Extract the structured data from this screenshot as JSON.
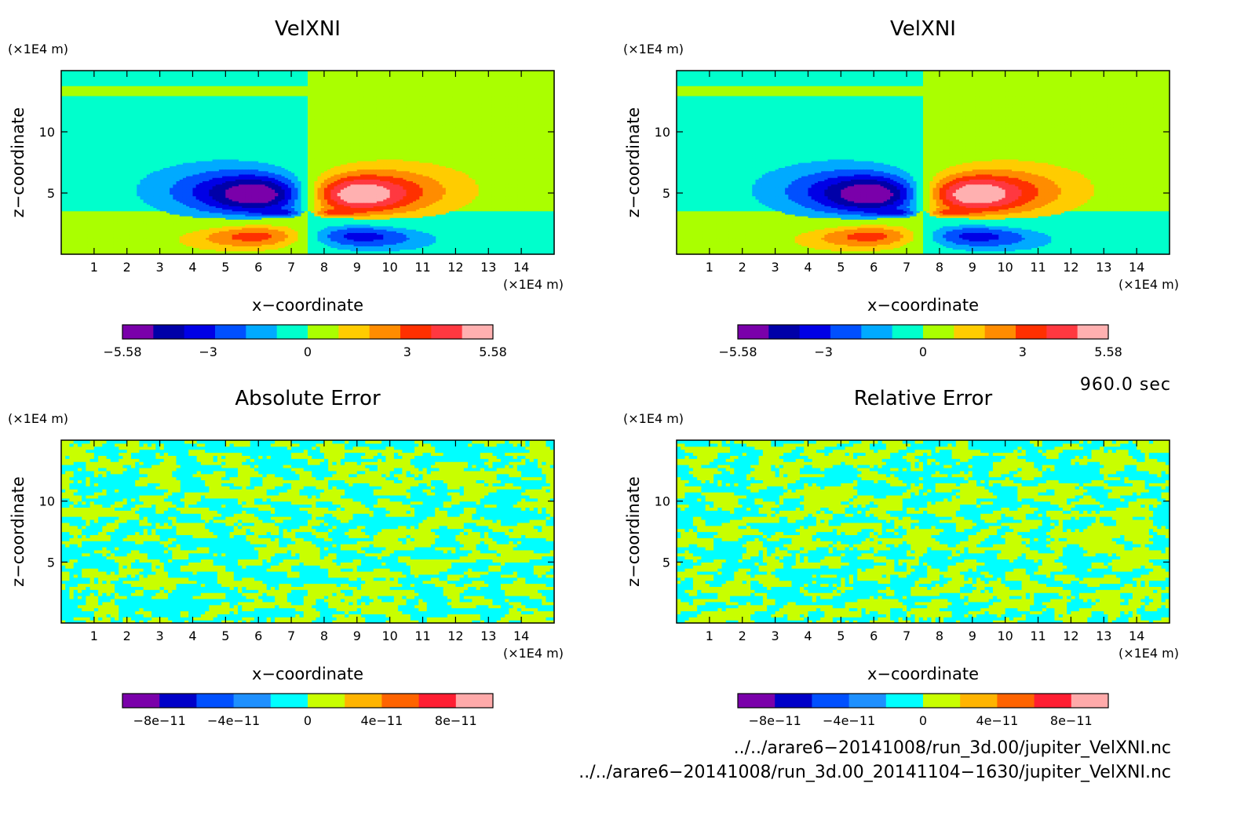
{
  "chart_data": [
    {
      "type": "heatmap",
      "title": "VelXNI",
      "xlabel": "x−coordinate",
      "ylabel": "z−coordinate",
      "x_unit": "(×1E4 m)",
      "y_unit": "(×1E4 m)",
      "xlim": [
        0,
        15
      ],
      "ylim": [
        0,
        15
      ],
      "x_ticks": [
        1,
        2,
        3,
        4,
        5,
        6,
        7,
        8,
        9,
        10,
        11,
        12,
        13,
        14
      ],
      "y_ticks": [
        5,
        10
      ],
      "field": "wave",
      "colorbar": {
        "levels": [
          -5.58,
          -4.65,
          -3.72,
          -2.79,
          -1.86,
          -0.93,
          0,
          0.93,
          1.86,
          2.79,
          3.72,
          4.65,
          5.58
        ],
        "colors": [
          "#7a00aa",
          "#0000a8",
          "#0000e6",
          "#0050ff",
          "#00aaff",
          "#00ffcc",
          "#aaff00",
          "#ffcc00",
          "#ff8c00",
          "#ff3000",
          "#ff3840",
          "#ffb0b0"
        ],
        "tick_values": [
          -5.58,
          -3,
          0,
          3,
          5.58
        ],
        "tick_labels": [
          "−5.58",
          "−3",
          "0",
          "3",
          "5.58"
        ]
      }
    },
    {
      "type": "heatmap",
      "title": "VelXNI",
      "xlabel": "x−coordinate",
      "ylabel": "z−coordinate",
      "x_unit": "(×1E4 m)",
      "y_unit": "(×1E4 m)",
      "xlim": [
        0,
        15
      ],
      "ylim": [
        0,
        15
      ],
      "x_ticks": [
        1,
        2,
        3,
        4,
        5,
        6,
        7,
        8,
        9,
        10,
        11,
        12,
        13,
        14
      ],
      "y_ticks": [
        5,
        10
      ],
      "field": "wave",
      "colorbar": {
        "levels": [
          -5.58,
          -4.65,
          -3.72,
          -2.79,
          -1.86,
          -0.93,
          0,
          0.93,
          1.86,
          2.79,
          3.72,
          4.65,
          5.58
        ],
        "colors": [
          "#7a00aa",
          "#0000a8",
          "#0000e6",
          "#0050ff",
          "#00aaff",
          "#00ffcc",
          "#aaff00",
          "#ffcc00",
          "#ff8c00",
          "#ff3000",
          "#ff3840",
          "#ffb0b0"
        ],
        "tick_values": [
          -5.58,
          -3,
          0,
          3,
          5.58
        ],
        "tick_labels": [
          "−5.58",
          "−3",
          "0",
          "3",
          "5.58"
        ]
      }
    },
    {
      "type": "heatmap",
      "title": "Absolute Error",
      "xlabel": "x−coordinate",
      "ylabel": "z−coordinate",
      "x_unit": "(×1E4 m)",
      "y_unit": "(×1E4 m)",
      "xlim": [
        0,
        15
      ],
      "ylim": [
        0,
        15
      ],
      "x_ticks": [
        1,
        2,
        3,
        4,
        5,
        6,
        7,
        8,
        9,
        10,
        11,
        12,
        13,
        14
      ],
      "y_ticks": [
        5,
        10
      ],
      "field": "noise",
      "colorbar": {
        "levels": [
          -1e-10,
          -8e-11,
          -6e-11,
          -4e-11,
          -2e-11,
          0,
          2e-11,
          4e-11,
          6e-11,
          8e-11,
          1e-10
        ],
        "colors": [
          "#7a00aa",
          "#0000c8",
          "#0050ff",
          "#1e90ff",
          "#00ffff",
          "#c8ff00",
          "#ffb400",
          "#ff6400",
          "#ff1e32",
          "#ffaaaa"
        ],
        "tick_values": [
          -8e-11,
          -4e-11,
          0,
          4e-11,
          8e-11
        ],
        "tick_labels": [
          "−8e−11",
          "−4e−11",
          "0",
          "4e−11",
          "8e−11"
        ]
      }
    },
    {
      "type": "heatmap",
      "title": "Relative Error",
      "xlabel": "x−coordinate",
      "ylabel": "z−coordinate",
      "x_unit": "(×1E4 m)",
      "y_unit": "(×1E4 m)",
      "xlim": [
        0,
        15
      ],
      "ylim": [
        0,
        15
      ],
      "x_ticks": [
        1,
        2,
        3,
        4,
        5,
        6,
        7,
        8,
        9,
        10,
        11,
        12,
        13,
        14
      ],
      "y_ticks": [
        5,
        10
      ],
      "field": "noise",
      "colorbar": {
        "levels": [
          -1e-10,
          -8e-11,
          -6e-11,
          -4e-11,
          -2e-11,
          0,
          2e-11,
          4e-11,
          6e-11,
          8e-11,
          1e-10
        ],
        "colors": [
          "#7a00aa",
          "#0000c8",
          "#0050ff",
          "#1e90ff",
          "#00ffff",
          "#c8ff00",
          "#ffb400",
          "#ff6400",
          "#ff1e32",
          "#ffaaaa"
        ],
        "tick_values": [
          -8e-11,
          -4e-11,
          0,
          4e-11,
          8e-11
        ],
        "tick_labels": [
          "−8e−11",
          "−4e−11",
          "0",
          "4e−11",
          "8e−11"
        ]
      }
    }
  ],
  "time_label": "960.0 sec",
  "files": [
    "../../arare6−20141008/run_3d.00/jupiter_VelXNI.nc",
    "../../arare6−20141008/run_3d.00_20141104−1630/jupiter_VelXNI.nc"
  ]
}
